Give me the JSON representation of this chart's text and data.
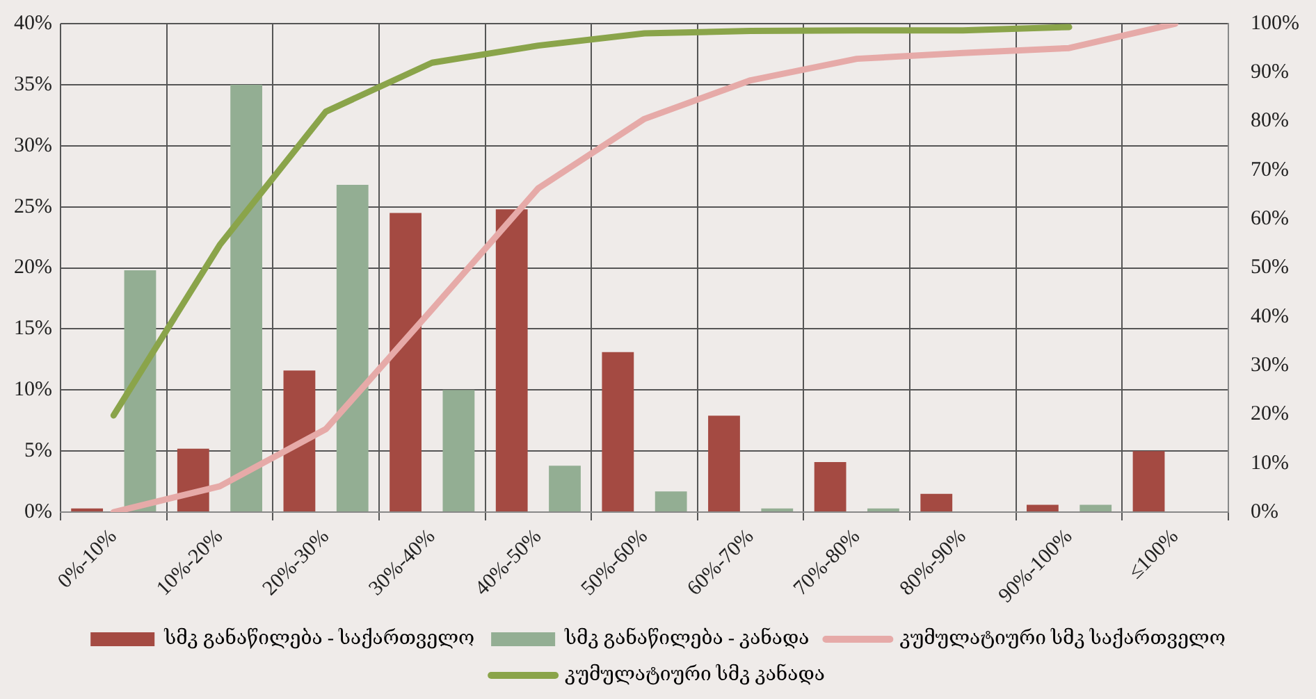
{
  "chart_data": {
    "type": "bar",
    "categories": [
      "0%-10%",
      "10%-20%",
      "20%-30%",
      "30%-40%",
      "40%-50%",
      "50%-60%",
      "60%-70%",
      "70%-80%",
      "80%-90%",
      "90%-100%",
      "≤100%"
    ],
    "series": [
      {
        "name": "სმკ განაწილება - საქართველო",
        "color": "#a44a42",
        "values": [
          0.3,
          5.2,
          11.6,
          24.5,
          24.8,
          13.1,
          7.9,
          4.1,
          1.5,
          0.6,
          5.0
        ]
      },
      {
        "name": "სმკ განაწილება - კანადა",
        "color": "#93ae93",
        "values": [
          19.8,
          35,
          26.8,
          10,
          3.8,
          1.7,
          0.3,
          0.3,
          0,
          0.6,
          null
        ]
      },
      {
        "name": "კუმულატიური სმკ საქართველო",
        "type": "line",
        "axis": "y2",
        "color": "#e6aaa8",
        "values": [
          0,
          5.3,
          17,
          41.5,
          66.3,
          80.5,
          88.4,
          92.8,
          94,
          95,
          100
        ]
      },
      {
        "name": "კუმულატიური სმკ კანადა",
        "type": "line",
        "axis": "y2",
        "color": "#8aa44a",
        "values": [
          19.8,
          54.7,
          82,
          92,
          95.5,
          98,
          98.5,
          98.6,
          98.6,
          99.3,
          null
        ]
      }
    ],
    "ylim": [
      0,
      40
    ],
    "yticks": [
      {
        "value": 0,
        "label": "0%"
      },
      {
        "value": 5,
        "label": "5%"
      },
      {
        "value": 10,
        "label": "10%"
      },
      {
        "value": 15,
        "label": "15%"
      },
      {
        "value": 20,
        "label": "20%"
      },
      {
        "value": 25,
        "label": "25%"
      },
      {
        "value": 30,
        "label": "30%"
      },
      {
        "value": 35,
        "label": "35%"
      },
      {
        "value": 40,
        "label": "40%"
      }
    ],
    "y2lim": [
      0,
      100
    ],
    "y2ticks": [
      {
        "value": 0,
        "label": "0%"
      },
      {
        "value": 10,
        "label": "10%"
      },
      {
        "value": 20,
        "label": "20%"
      },
      {
        "value": 30,
        "label": "30%"
      },
      {
        "value": 40,
        "label": "40%"
      },
      {
        "value": 50,
        "label": "50%"
      },
      {
        "value": 60,
        "label": "60%"
      },
      {
        "value": 70,
        "label": "70%"
      },
      {
        "value": 80,
        "label": "80%"
      },
      {
        "value": 90,
        "label": "90%"
      },
      {
        "value": 100,
        "label": "100%"
      }
    ],
    "grid": true,
    "legend": "bottom",
    "marker": "none",
    "line_style": "solid"
  }
}
